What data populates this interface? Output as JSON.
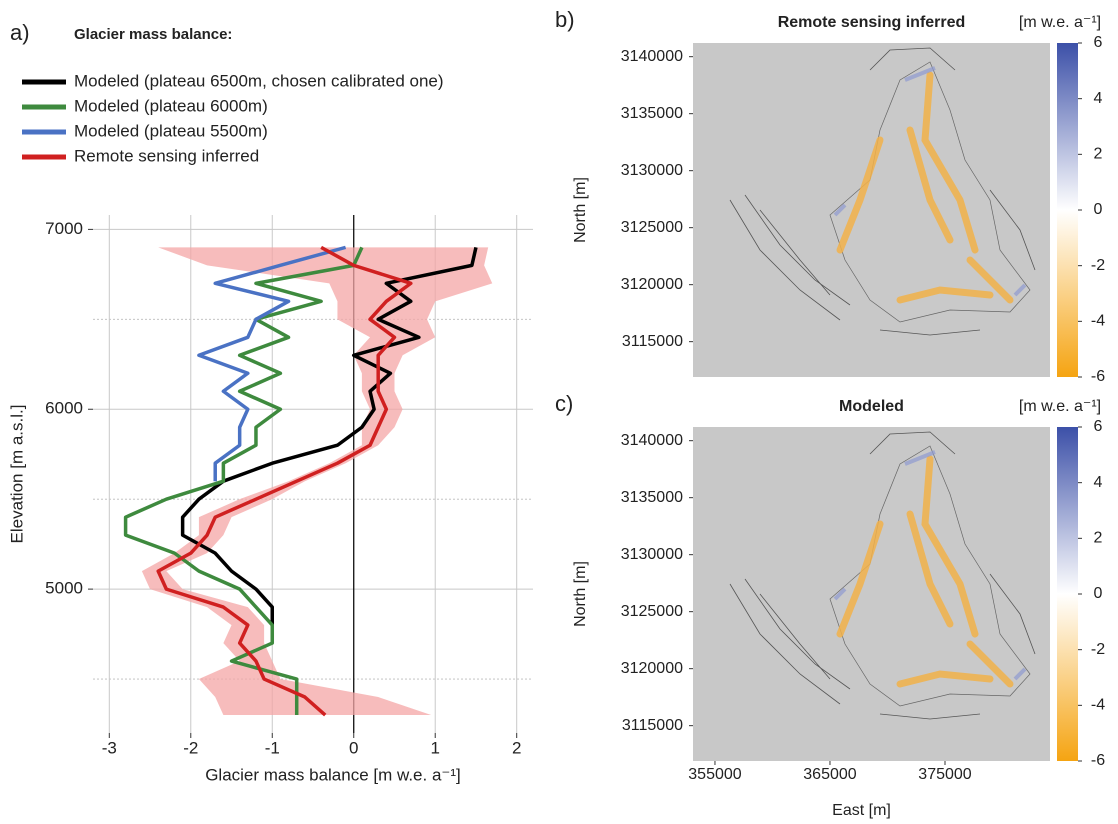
{
  "chart_data": [
    {
      "type": "line",
      "panel_label": "a)",
      "title": "Glacier mass balance:",
      "xlabel": "Glacier mass balance [m w.e. a⁻¹]",
      "ylabel": "Elevation [m a.s.l.]",
      "xlim": [
        -3.2,
        2.2
      ],
      "ylim": [
        4200,
        7080
      ],
      "xticks": [
        -3,
        -2,
        -1,
        0,
        1,
        2
      ],
      "yticks": [
        5000,
        6000,
        7000
      ],
      "minor_yticks": [
        4500,
        5500,
        6500
      ],
      "grid": true,
      "y": [
        4300,
        4400,
        4500,
        4600,
        4700,
        4800,
        4900,
        5000,
        5100,
        5200,
        5300,
        5400,
        5500,
        5600,
        5700,
        5800,
        5900,
        6000,
        6100,
        6200,
        6300,
        6400,
        6500,
        6600,
        6700,
        6800,
        6900
      ],
      "ribbon": {
        "color": "#f4a6a6",
        "upper": [
          0.95,
          0.3,
          -0.9,
          -1.0,
          -1.1,
          -1.1,
          -1.3,
          -2.1,
          -2.3,
          -1.8,
          -1.6,
          -1.5,
          -1.0,
          -0.6,
          -0.1,
          0.3,
          0.5,
          0.6,
          0.5,
          0.5,
          0.6,
          1.0,
          0.9,
          1.0,
          1.7,
          1.6,
          1.65
        ],
        "lower": [
          -1.6,
          -1.7,
          -1.9,
          -1.4,
          -1.6,
          -1.5,
          -1.8,
          -2.5,
          -2.6,
          -2.2,
          -1.9,
          -1.9,
          -1.4,
          -0.8,
          -0.3,
          0.1,
          0.1,
          0.2,
          0.1,
          0.1,
          0.0,
          0.2,
          -0.2,
          -0.2,
          -0.3,
          -1.8,
          -2.4
        ]
      },
      "series": [
        {
          "name": "Modeled (plateau 6500m, chosen calibrated one)",
          "color": "#000000",
          "values": [
            null,
            null,
            null,
            null,
            -1.0,
            -1.0,
            -1.0,
            -1.2,
            -1.5,
            -1.7,
            -2.1,
            -2.1,
            -1.9,
            -1.6,
            -1.0,
            -0.2,
            0.1,
            0.25,
            0.2,
            0.45,
            0.0,
            0.8,
            0.3,
            0.7,
            0.4,
            1.45,
            1.5
          ]
        },
        {
          "name": "Modeled (plateau 6000m)",
          "color": "#3e8a3e",
          "values": [
            -0.7,
            -0.7,
            -0.7,
            -1.5,
            -1.0,
            -1.0,
            -1.2,
            -1.4,
            -1.9,
            -2.2,
            -2.8,
            -2.8,
            -2.3,
            -1.6,
            -1.6,
            -1.2,
            -1.2,
            -0.9,
            -1.4,
            -0.9,
            -1.4,
            -0.8,
            -1.2,
            -0.4,
            -1.2,
            0.0,
            0.1
          ]
        },
        {
          "name": "Modeled (plateau 5500m)",
          "color": "#4a72c4",
          "values": [
            null,
            null,
            null,
            null,
            null,
            null,
            null,
            null,
            null,
            null,
            null,
            null,
            null,
            -1.7,
            -1.7,
            -1.4,
            -1.4,
            -1.3,
            -1.6,
            -1.3,
            -1.9,
            -1.3,
            -1.2,
            -0.8,
            -1.7,
            -0.9,
            -0.1
          ]
        },
        {
          "name": "Remote sensing inferred",
          "color": "#d02020",
          "values": [
            -0.35,
            -0.6,
            -1.1,
            -1.2,
            -1.4,
            -1.3,
            -1.6,
            -2.3,
            -2.4,
            -2.0,
            -1.8,
            -1.7,
            -1.2,
            -0.7,
            -0.2,
            0.2,
            0.3,
            0.4,
            0.3,
            0.3,
            0.3,
            0.5,
            0.2,
            0.4,
            0.7,
            0.0,
            -0.4
          ]
        }
      ]
    },
    {
      "type": "map",
      "panel_label": "b)",
      "title": "Remote sensing inferred",
      "ylabel": "North [m]",
      "xlim": [
        353090,
        384130
      ],
      "ylim": [
        3111900,
        3141200
      ],
      "yticks": [
        3115000,
        3120000,
        3125000,
        3130000,
        3135000,
        3140000
      ],
      "colorbar": {
        "label": "[m  w.e. a⁻¹]",
        "lim": [
          -6,
          6
        ],
        "ticks": [
          -6,
          -4,
          -2,
          0,
          2,
          4,
          6
        ],
        "colors": [
          "#f5a412",
          "#ffffff",
          "#3c50a8"
        ]
      }
    },
    {
      "type": "map",
      "panel_label": "c)",
      "title": "Modeled",
      "ylabel": "North [m]",
      "xlabel": "East [m]",
      "xlim": [
        353090,
        384130
      ],
      "ylim": [
        3111900,
        3141200
      ],
      "xticks": [
        355000,
        365000,
        375000
      ],
      "yticks": [
        3115000,
        3120000,
        3125000,
        3130000,
        3135000,
        3140000
      ],
      "colorbar": {
        "label": "[m  w.e. a⁻¹]",
        "lim": [
          -6,
          6
        ],
        "ticks": [
          -6,
          -4,
          -2,
          0,
          2,
          4,
          6
        ],
        "colors": [
          "#f5a412",
          "#ffffff",
          "#3c50a8"
        ]
      }
    }
  ]
}
